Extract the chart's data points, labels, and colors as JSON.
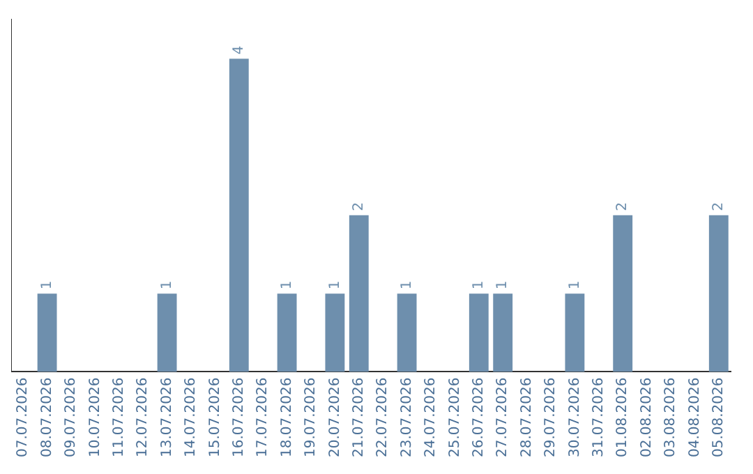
{
  "chart_data": {
    "type": "bar",
    "categories": [
      "07.07.2026",
      "08.07.2026",
      "09.07.2026",
      "10.07.2026",
      "11.07.2026",
      "12.07.2026",
      "13.07.2026",
      "14.07.2026",
      "15.07.2026",
      "16.07.2026",
      "17.07.2026",
      "18.07.2026",
      "19.07.2026",
      "20.07.2026",
      "21.07.2026",
      "22.07.2026",
      "23.07.2026",
      "24.07.2026",
      "25.07.2026",
      "26.07.2026",
      "27.07.2026",
      "28.07.2026",
      "29.07.2026",
      "30.07.2026",
      "31.07.2026",
      "01.08.2026",
      "02.08.2026",
      "03.08.2026",
      "04.08.2026",
      "05.08.2026"
    ],
    "values": [
      0,
      1,
      0,
      0,
      0,
      0,
      1,
      0,
      0,
      4,
      0,
      1,
      0,
      1,
      2,
      0,
      1,
      0,
      0,
      1,
      1,
      0,
      0,
      1,
      0,
      2,
      0,
      0,
      0,
      2
    ],
    "value_labels": [
      null,
      "1",
      null,
      null,
      null,
      null,
      "1",
      null,
      null,
      "4",
      null,
      "1",
      null,
      "1",
      "2",
      null,
      "1",
      null,
      null,
      "1",
      "1",
      null,
      null,
      "1",
      null,
      "2",
      null,
      null,
      null,
      "2"
    ],
    "color": "#6e8fad",
    "grid": false,
    "legend": false,
    "tick_labels": "x"
  }
}
